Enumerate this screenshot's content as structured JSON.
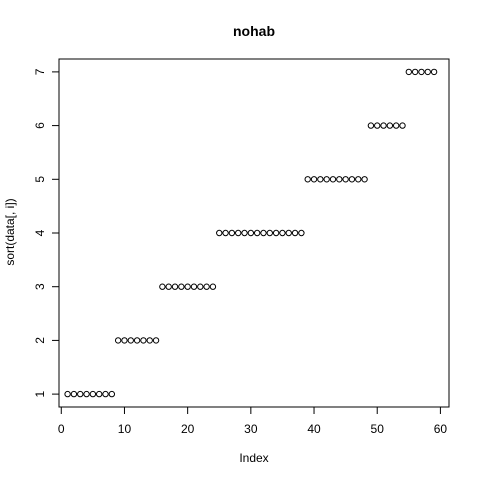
{
  "chart_data": {
    "type": "scatter",
    "title": "nohab",
    "xlabel": "Index",
    "ylabel": "sort(data[, i])",
    "xlim": [
      -0.36,
      61.36
    ],
    "ylim": [
      0.76,
      7.24
    ],
    "x_ticks": [
      0,
      10,
      20,
      30,
      40,
      50,
      60
    ],
    "y_ticks": [
      1,
      2,
      3,
      4,
      5,
      6,
      7
    ],
    "x_tick_labels": [
      "0",
      "10",
      "20",
      "30",
      "40",
      "50",
      "60"
    ],
    "y_tick_labels": [
      "1",
      "2",
      "3",
      "4",
      "5",
      "6",
      "7"
    ],
    "grid": false,
    "marker": "open-circle",
    "y": [
      1,
      1,
      1,
      1,
      1,
      1,
      1,
      1,
      2,
      2,
      2,
      2,
      2,
      2,
      2,
      3,
      3,
      3,
      3,
      3,
      3,
      3,
      3,
      3,
      4,
      4,
      4,
      4,
      4,
      4,
      4,
      4,
      4,
      4,
      4,
      4,
      4,
      4,
      5,
      5,
      5,
      5,
      5,
      5,
      5,
      5,
      5,
      5,
      6,
      6,
      6,
      6,
      6,
      6,
      7,
      7,
      7,
      7,
      7
    ]
  }
}
